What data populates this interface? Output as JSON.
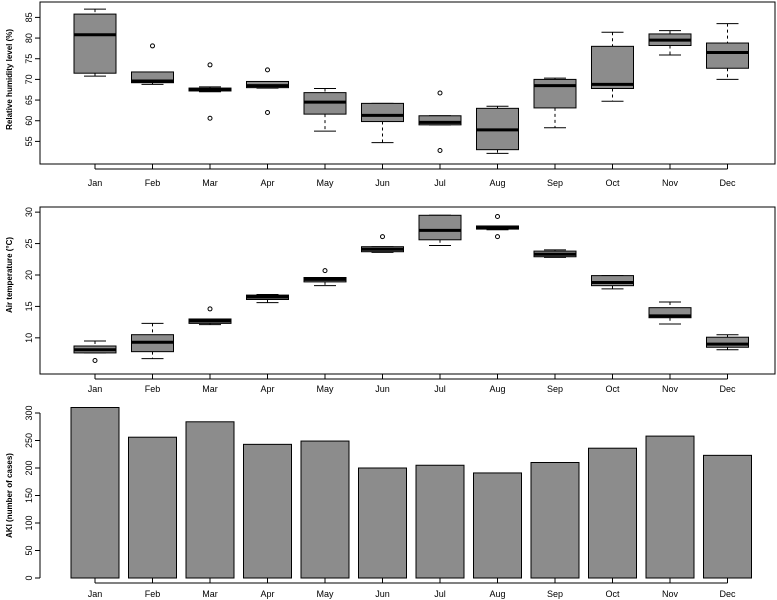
{
  "colors": {
    "fill": "#8c8c8c",
    "line": "#000000",
    "background": "#ffffff"
  },
  "chart_data": [
    {
      "type": "boxplot",
      "title": "",
      "xlabel": "",
      "ylabel": "Relative humidity level (%)",
      "ylim": [
        50.5,
        88
      ],
      "yticks": [
        55,
        60,
        65,
        70,
        75,
        80,
        85
      ],
      "categories": [
        "Jan",
        "Feb",
        "Mar",
        "Apr",
        "May",
        "Jun",
        "Jul",
        "Aug",
        "Sep",
        "Oct",
        "Nov",
        "Dec"
      ],
      "boxes": [
        {
          "min": 70.8,
          "q1": 71.5,
          "median": 80.8,
          "q3": 85.8,
          "max": 87.0,
          "outliers": []
        },
        {
          "min": 68.8,
          "q1": 69.2,
          "median": 69.6,
          "q3": 71.8,
          "max": 71.8,
          "outliers": [
            78.1
          ]
        },
        {
          "min": 67.0,
          "q1": 67.2,
          "median": 67.6,
          "q3": 67.9,
          "max": 68.2,
          "outliers": [
            73.5,
            60.6
          ]
        },
        {
          "min": 67.9,
          "q1": 68.0,
          "median": 68.5,
          "q3": 69.5,
          "max": 69.5,
          "outliers": [
            72.3,
            62.0
          ]
        },
        {
          "min": 57.5,
          "q1": 61.6,
          "median": 64.5,
          "q3": 66.8,
          "max": 67.8,
          "outliers": []
        },
        {
          "min": 54.7,
          "q1": 59.8,
          "median": 61.3,
          "q3": 64.2,
          "max": 64.2,
          "outliers": []
        },
        {
          "min": 59.0,
          "q1": 59.0,
          "median": 59.6,
          "q3": 61.2,
          "max": 61.2,
          "outliers": [
            66.7,
            52.8
          ]
        },
        {
          "min": 52.1,
          "q1": 53.0,
          "median": 57.8,
          "q3": 63.0,
          "max": 63.5,
          "outliers": []
        },
        {
          "min": 58.3,
          "q1": 63.1,
          "median": 68.5,
          "q3": 70.0,
          "max": 70.3,
          "outliers": []
        },
        {
          "min": 64.7,
          "q1": 67.8,
          "median": 68.8,
          "q3": 78.0,
          "max": 81.4,
          "outliers": []
        },
        {
          "min": 75.9,
          "q1": 78.2,
          "median": 79.5,
          "q3": 81.0,
          "max": 81.8,
          "outliers": []
        },
        {
          "min": 70.0,
          "q1": 72.7,
          "median": 76.5,
          "q3": 78.8,
          "max": 83.5,
          "outliers": []
        }
      ]
    },
    {
      "type": "boxplot",
      "title": "",
      "xlabel": "",
      "ylabel": "Air temperature (°C)",
      "ylim": [
        5.2,
        30.5
      ],
      "yticks": [
        10,
        15,
        20,
        25,
        30
      ],
      "categories": [
        "Jan",
        "Feb",
        "Mar",
        "Apr",
        "May",
        "Jun",
        "Jul",
        "Aug",
        "Sep",
        "Oct",
        "Nov",
        "Dec"
      ],
      "boxes": [
        {
          "min": 7.6,
          "q1": 7.6,
          "median": 8.1,
          "q3": 8.7,
          "max": 9.5,
          "outliers": [
            6.4
          ]
        },
        {
          "min": 6.7,
          "q1": 7.8,
          "median": 9.3,
          "q3": 10.5,
          "max": 12.3,
          "outliers": []
        },
        {
          "min": 12.1,
          "q1": 12.3,
          "median": 12.7,
          "q3": 13.0,
          "max": 13.0,
          "outliers": [
            14.6
          ]
        },
        {
          "min": 15.6,
          "q1": 16.1,
          "median": 16.5,
          "q3": 16.8,
          "max": 16.9,
          "outliers": []
        },
        {
          "min": 18.3,
          "q1": 18.9,
          "median": 19.3,
          "q3": 19.6,
          "max": 19.6,
          "outliers": [
            20.7
          ]
        },
        {
          "min": 23.6,
          "q1": 23.7,
          "median": 24.1,
          "q3": 24.5,
          "max": 24.5,
          "outliers": [
            26.1
          ]
        },
        {
          "min": 24.7,
          "q1": 25.6,
          "median": 27.1,
          "q3": 29.5,
          "max": 29.5,
          "outliers": []
        },
        {
          "min": 27.2,
          "q1": 27.3,
          "median": 27.5,
          "q3": 27.8,
          "max": 27.8,
          "outliers": [
            29.3,
            26.1
          ]
        },
        {
          "min": 22.8,
          "q1": 22.9,
          "median": 23.3,
          "q3": 23.8,
          "max": 24.0,
          "outliers": []
        },
        {
          "min": 17.8,
          "q1": 18.3,
          "median": 18.8,
          "q3": 19.9,
          "max": 19.9,
          "outliers": []
        },
        {
          "min": 12.2,
          "q1": 13.2,
          "median": 13.5,
          "q3": 14.8,
          "max": 15.7,
          "outliers": []
        },
        {
          "min": 8.1,
          "q1": 8.5,
          "median": 9.0,
          "q3": 10.1,
          "max": 10.5,
          "outliers": []
        }
      ]
    },
    {
      "type": "bar",
      "title": "",
      "xlabel": "",
      "ylabel": "AKI (number of cases)",
      "ylim": [
        0,
        320
      ],
      "yticks": [
        0,
        50,
        100,
        150,
        200,
        250,
        300
      ],
      "categories": [
        "Jan",
        "Feb",
        "Mar",
        "Apr",
        "May",
        "Jun",
        "Jul",
        "Aug",
        "Sep",
        "Oct",
        "Nov",
        "Dec"
      ],
      "values": [
        310,
        256,
        284,
        243,
        249,
        200,
        205,
        191,
        210,
        236,
        258,
        223
      ]
    }
  ]
}
